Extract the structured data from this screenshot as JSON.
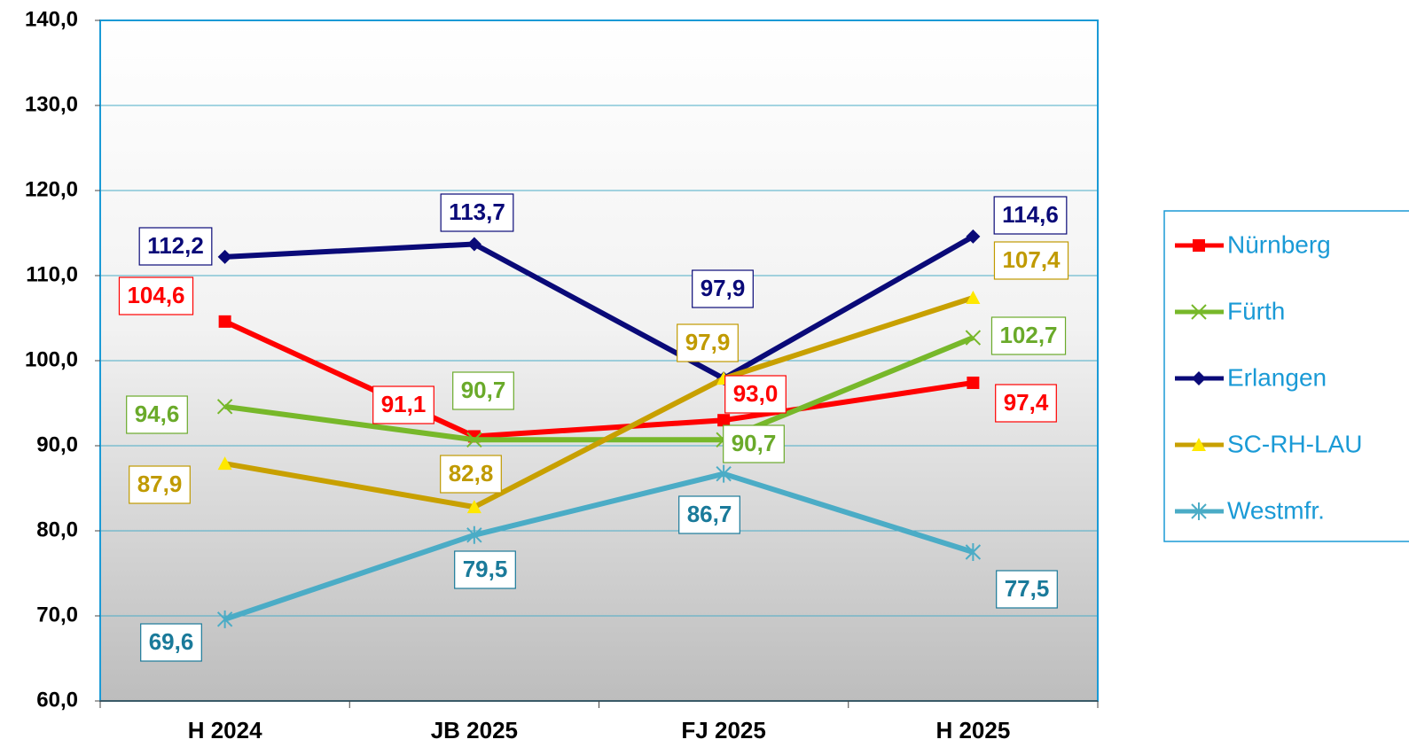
{
  "chart_data": {
    "type": "line",
    "categories": [
      "H 2024",
      "JB 2025",
      "FJ 2025",
      "H 2025"
    ],
    "ylim": [
      60,
      140
    ],
    "yticks": [
      {
        "value": 60,
        "label": "60,0"
      },
      {
        "value": 70,
        "label": "70,0"
      },
      {
        "value": 80,
        "label": "80,0"
      },
      {
        "value": 90,
        "label": "90,0"
      },
      {
        "value": 100,
        "label": "100,0"
      },
      {
        "value": 110,
        "label": "110,0"
      },
      {
        "value": 120,
        "label": "120,0"
      },
      {
        "value": 130,
        "label": "130,0"
      },
      {
        "value": 140,
        "label": "140,0"
      }
    ],
    "grid": true,
    "legend": "right",
    "series": [
      {
        "name": "Nürnberg",
        "color": "#ff0000",
        "label_color": "#ff0000",
        "marker": "square",
        "values": [
          104.6,
          91.1,
          93.0,
          97.4
        ],
        "value_labels": [
          "104,6",
          "91,1",
          "93,0",
          "97,4"
        ]
      },
      {
        "name": "Fürth",
        "color": "#77b82a",
        "label_color": "#6aaa2a",
        "marker": "x",
        "values": [
          94.6,
          90.7,
          90.7,
          102.7
        ],
        "value_labels": [
          "94,6",
          "90,7",
          "90,7",
          "102,7"
        ]
      },
      {
        "name": "Erlangen",
        "color": "#0a0a78",
        "label_color": "#0a0a78",
        "marker": "diamond",
        "values": [
          112.2,
          113.7,
          97.9,
          114.6
        ],
        "value_labels": [
          "112,2",
          "113,7",
          "97,9",
          "114,6"
        ]
      },
      {
        "name": "SC-RH-LAU",
        "color": "#c8a000",
        "label_color": "#c09a00",
        "marker": "triangle",
        "values": [
          87.9,
          82.8,
          97.9,
          107.4
        ],
        "value_labels": [
          "87,9",
          "82,8",
          "97,9",
          "107,4"
        ]
      },
      {
        "name": "Westmfr.",
        "color": "#4bacc6",
        "label_color": "#1a7a9a",
        "marker": "asterisk",
        "values": [
          69.6,
          79.5,
          86.7,
          77.5
        ],
        "value_labels": [
          "69,6",
          "79,5",
          "86,7",
          "77,5"
        ]
      }
    ]
  }
}
